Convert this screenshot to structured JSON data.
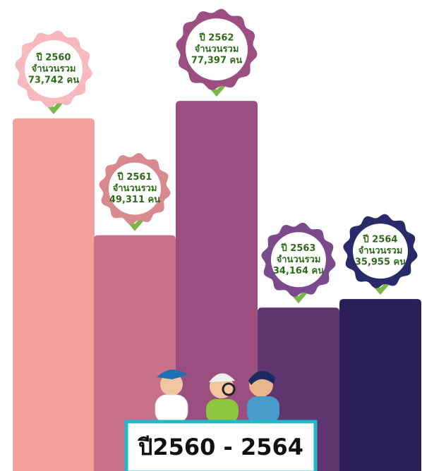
{
  "chart_data": {
    "type": "bar",
    "title": "ปี2560 - 2564",
    "categories": [
      "ปี 2560",
      "ปี 2561",
      "ปี 2562",
      "ปี 2563",
      "ปี 2564"
    ],
    "value_caption": "จำนวนรวม",
    "values": [
      73742,
      49311,
      77397,
      34164,
      35955
    ],
    "value_labels": [
      "73,742 คน",
      "49,311 คน",
      "77,397 คน",
      "34,164 คน",
      "35,955 คน"
    ],
    "colors": [
      "#f4a09c",
      "#c97189",
      "#9a4f80",
      "#5e356e",
      "#2a1f57"
    ],
    "badge_colors": [
      "#f7b9bd",
      "#d98a8f",
      "#9a4f80",
      "#7a4a8c",
      "#2a2a6b"
    ],
    "ylim": [
      0,
      98500
    ]
  }
}
